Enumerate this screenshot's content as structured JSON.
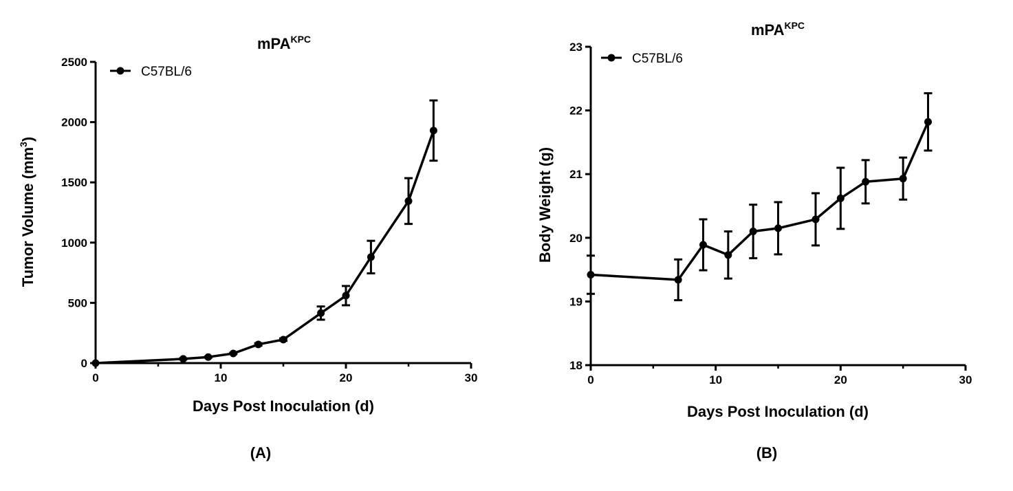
{
  "chart_data": [
    {
      "type": "line",
      "panel_label": "(A)",
      "title": "mPA",
      "title_superscript": "KPC",
      "xlabel": "Days Post Inoculation (d)",
      "ylabel": "Tumor Volume (mm",
      "ylabel_superscript": "3",
      "ylabel_suffix": ")",
      "xlim": [
        0,
        30
      ],
      "ylim": [
        0,
        2500
      ],
      "xticks": [
        0,
        10,
        20,
        30
      ],
      "yticks": [
        0,
        500,
        1000,
        1500,
        2000,
        2500
      ],
      "xtick_labels": [
        "0",
        "10",
        "20",
        "30"
      ],
      "ytick_labels": [
        "0",
        "500",
        "1000",
        "1500",
        "2000",
        "2500"
      ],
      "legend": "top-left",
      "series": [
        {
          "name": "C57BL/6",
          "x": [
            0,
            7,
            9,
            11,
            13,
            15,
            18,
            20,
            22,
            25,
            27
          ],
          "y": [
            0,
            35,
            50,
            80,
            155,
            195,
            415,
            560,
            880,
            1345,
            1930
          ],
          "err": [
            0,
            5,
            5,
            5,
            10,
            10,
            55,
            80,
            135,
            190,
            250
          ]
        }
      ]
    },
    {
      "type": "line",
      "panel_label": "(B)",
      "title": "mPA",
      "title_superscript": "KPC",
      "xlabel": "Days Post Inoculation (d)",
      "ylabel": "Body Weight (g)",
      "xlim": [
        0,
        30
      ],
      "ylim": [
        18,
        23
      ],
      "xticks": [
        0,
        10,
        20,
        30
      ],
      "yticks": [
        18,
        19,
        20,
        21,
        22,
        23
      ],
      "xtick_labels": [
        "0",
        "10",
        "20",
        "30"
      ],
      "ytick_labels": [
        "18",
        "19",
        "20",
        "21",
        "22",
        "23"
      ],
      "legend": "top-left",
      "series": [
        {
          "name": "C57BL/6",
          "x": [
            0,
            7,
            9,
            11,
            13,
            15,
            18,
            20,
            22,
            25,
            27
          ],
          "y": [
            19.42,
            19.34,
            19.89,
            19.73,
            20.1,
            20.15,
            20.29,
            20.62,
            20.88,
            20.93,
            21.82
          ],
          "err": [
            0.3,
            0.32,
            0.4,
            0.37,
            0.42,
            0.41,
            0.41,
            0.48,
            0.34,
            0.33,
            0.45
          ]
        }
      ]
    }
  ]
}
